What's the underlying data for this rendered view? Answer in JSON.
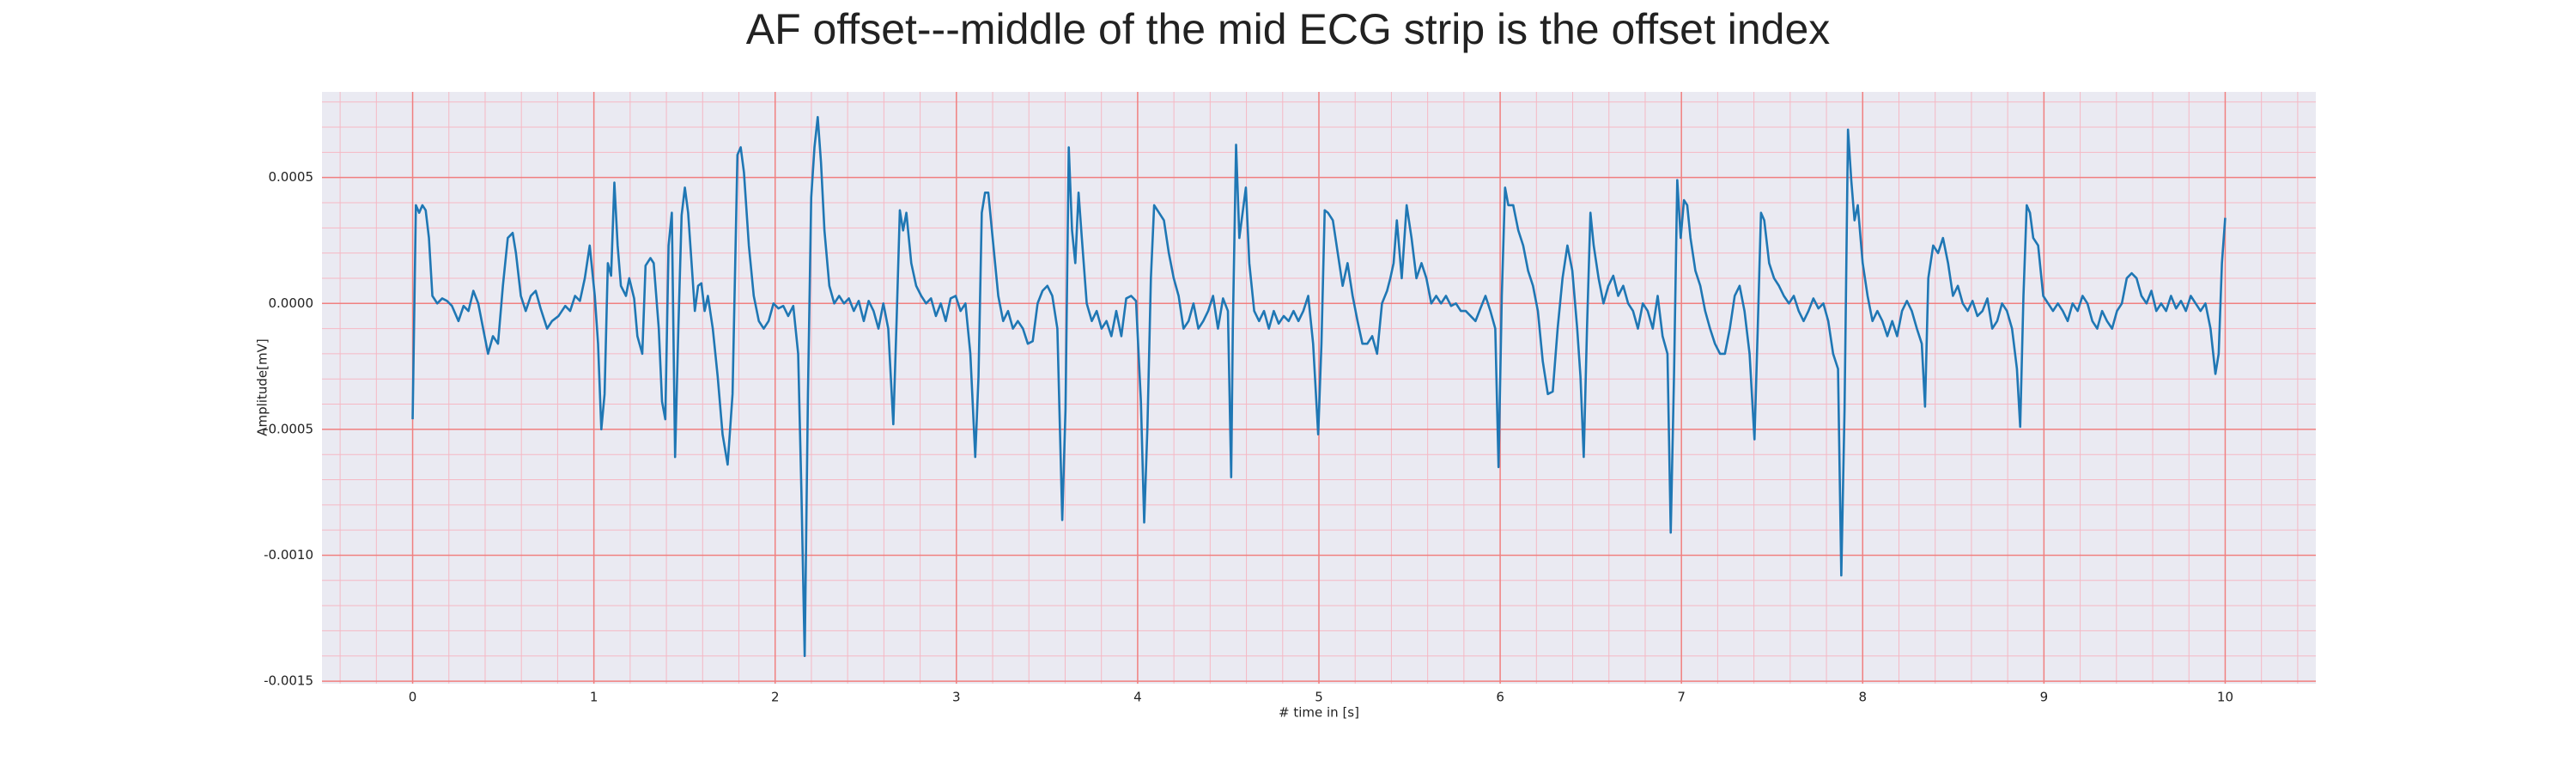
{
  "chart_data": {
    "type": "line",
    "title": "AF offset---middle of the mid ECG strip is the offset index",
    "x_label": "# time in [s]",
    "y_label": "Amplitude[mV]",
    "color": "#1f77b4",
    "grid": true,
    "minor_grid": true,
    "xlim": [
      -0.5,
      10.5
    ],
    "ylim": [
      -0.00151,
      0.00084
    ],
    "xticks": [
      0,
      1,
      2,
      3,
      4,
      5,
      6,
      7,
      8,
      9,
      10
    ],
    "yticks": [
      -0.0015,
      {
        "value": -0.001,
        "label": "-0.0010"
      },
      -0.0005,
      {
        "value": 0,
        "label": "0.0000"
      },
      0.0005
    ],
    "x": [
      0,
      0.018,
      0.036,
      0.054,
      0.072,
      0.09,
      0.109,
      0.136,
      0.163,
      0.19,
      0.217,
      0.253,
      0.281,
      0.308,
      0.335,
      0.362,
      0.389,
      0.416,
      0.443,
      0.471,
      0.498,
      0.525,
      0.552,
      0.57,
      0.597,
      0.624,
      0.652,
      0.679,
      0.706,
      0.742,
      0.769,
      0.805,
      0.842,
      0.869,
      0.896,
      0.923,
      0.95,
      0.977,
      1.005,
      1.023,
      1.041,
      1.059,
      1.077,
      1.095,
      1.113,
      1.131,
      1.149,
      1.177,
      1.195,
      1.222,
      1.24,
      1.267,
      1.285,
      1.312,
      1.33,
      1.358,
      1.376,
      1.394,
      1.412,
      1.43,
      1.448,
      1.466,
      1.484,
      1.502,
      1.52,
      1.539,
      1.557,
      1.575,
      1.593,
      1.611,
      1.629,
      1.656,
      1.683,
      1.71,
      1.738,
      1.765,
      1.792,
      1.81,
      1.828,
      1.855,
      1.882,
      1.91,
      1.937,
      1.964,
      1.991,
      2.018,
      2.045,
      2.072,
      2.1,
      2.127,
      2.145,
      2.163,
      2.181,
      2.199,
      2.217,
      2.235,
      2.253,
      2.272,
      2.299,
      2.326,
      2.353,
      2.38,
      2.407,
      2.434,
      2.461,
      2.489,
      2.516,
      2.543,
      2.57,
      2.597,
      2.624,
      2.652,
      2.67,
      2.688,
      2.706,
      2.724,
      2.751,
      2.778,
      2.806,
      2.833,
      2.86,
      2.887,
      2.914,
      2.941,
      2.968,
      2.996,
      3.023,
      3.05,
      3.077,
      3.104,
      3.122,
      3.14,
      3.158,
      3.176,
      3.204,
      3.231,
      3.258,
      3.285,
      3.312,
      3.339,
      3.367,
      3.394,
      3.421,
      3.448,
      3.475,
      3.502,
      3.529,
      3.557,
      3.584,
      3.602,
      3.62,
      3.638,
      3.656,
      3.674,
      3.692,
      3.719,
      3.747,
      3.774,
      3.801,
      3.828,
      3.855,
      3.882,
      3.91,
      3.937,
      3.964,
      3.991,
      4.018,
      4.036,
      4.054,
      4.073,
      4.091,
      4.118,
      4.145,
      4.172,
      4.199,
      4.226,
      4.253,
      4.281,
      4.308,
      4.335,
      4.362,
      4.389,
      4.416,
      4.443,
      4.471,
      4.498,
      4.516,
      4.525,
      4.543,
      4.561,
      4.579,
      4.597,
      4.616,
      4.643,
      4.67,
      4.697,
      4.724,
      4.751,
      4.778,
      4.806,
      4.833,
      4.86,
      4.887,
      4.914,
      4.941,
      4.968,
      4.996,
      5.014,
      5.032,
      5.05,
      5.077,
      5.104,
      5.131,
      5.158,
      5.186,
      5.213,
      5.24,
      5.267,
      5.294,
      5.321,
      5.348,
      5.376,
      5.394,
      5.412,
      5.43,
      5.457,
      5.484,
      5.511,
      5.538,
      5.566,
      5.593,
      5.62,
      5.647,
      5.674,
      5.701,
      5.729,
      5.756,
      5.783,
      5.81,
      5.837,
      5.864,
      5.891,
      5.919,
      5.946,
      5.973,
      5.991,
      6.009,
      6.027,
      6.045,
      6.072,
      6.1,
      6.127,
      6.154,
      6.181,
      6.208,
      6.235,
      6.263,
      6.29,
      6.317,
      6.344,
      6.371,
      6.398,
      6.425,
      6.443,
      6.461,
      6.479,
      6.498,
      6.516,
      6.543,
      6.57,
      6.597,
      6.624,
      6.651,
      6.679,
      6.706,
      6.733,
      6.76,
      6.787,
      6.814,
      6.842,
      6.869,
      6.896,
      6.923,
      6.941,
      6.959,
      6.977,
      6.996,
      7.014,
      7.032,
      7.05,
      7.077,
      7.104,
      7.131,
      7.158,
      7.185,
      7.213,
      7.24,
      7.267,
      7.294,
      7.321,
      7.348,
      7.376,
      7.403,
      7.421,
      7.439,
      7.457,
      7.484,
      7.511,
      7.538,
      7.565,
      7.593,
      7.62,
      7.647,
      7.674,
      7.701,
      7.728,
      7.756,
      7.783,
      7.81,
      7.837,
      7.864,
      7.882,
      7.9,
      7.919,
      7.937,
      7.955,
      7.973,
      8.0,
      8.027,
      8.054,
      8.081,
      8.109,
      8.136,
      8.163,
      8.19,
      8.217,
      8.244,
      8.271,
      8.299,
      8.326,
      8.344,
      8.362,
      8.389,
      8.416,
      8.443,
      8.471,
      8.498,
      8.525,
      8.552,
      8.579,
      8.606,
      8.633,
      8.661,
      8.688,
      8.715,
      8.742,
      8.769,
      8.796,
      8.824,
      8.851,
      8.869,
      8.887,
      8.905,
      8.923,
      8.941,
      8.968,
      8.996,
      9.023,
      9.05,
      9.077,
      9.104,
      9.131,
      9.158,
      9.186,
      9.213,
      9.24,
      9.267,
      9.294,
      9.321,
      9.348,
      9.376,
      9.403,
      9.43,
      9.457,
      9.484,
      9.511,
      9.538,
      9.566,
      9.593,
      9.62,
      9.647,
      9.674,
      9.701,
      9.729,
      9.756,
      9.783,
      9.81,
      9.837,
      9.864,
      9.891,
      9.919,
      9.946,
      9.964,
      9.982,
      10.0
    ],
    "values": [
      -0.00046,
      0.00039,
      0.00036,
      0.00039,
      0.00037,
      0.00026,
      3e-05,
      0,
      2e-05,
      1e-05,
      -1e-05,
      -7e-05,
      -1e-05,
      -3e-05,
      5e-05,
      0,
      -0.0001,
      -0.0002,
      -0.00013,
      -0.00016,
      7e-05,
      0.00026,
      0.00028,
      0.0002,
      3e-05,
      -3e-05,
      3e-05,
      5e-05,
      -2e-05,
      -0.0001,
      -7e-05,
      -5e-05,
      -1e-05,
      -3e-05,
      3e-05,
      1e-05,
      0.0001,
      0.00023,
      3e-05,
      -0.00016,
      -0.0005,
      -0.00036,
      0.00016,
      0.00011,
      0.00048,
      0.00023,
      7e-05,
      3e-05,
      0.0001,
      2e-05,
      -0.00013,
      -0.0002,
      0.00015,
      0.00018,
      0.00016,
      -0.0001,
      -0.00039,
      -0.00046,
      0.00023,
      0.00036,
      -0.00061,
      -0.0001,
      0.00035,
      0.00046,
      0.00036,
      0.00016,
      -3e-05,
      7e-05,
      8e-05,
      -3e-05,
      3e-05,
      -0.0001,
      -0.00029,
      -0.00052,
      -0.00064,
      -0.00036,
      0.00059,
      0.00062,
      0.00052,
      0.00023,
      3e-05,
      -7e-05,
      -0.0001,
      -7e-05,
      0,
      -2e-05,
      -1e-05,
      -5e-05,
      -1e-05,
      -0.0002,
      -0.00075,
      -0.0014,
      -0.00036,
      0.00042,
      0.00062,
      0.00074,
      0.00056,
      0.00029,
      7e-05,
      0,
      3e-05,
      0,
      2e-05,
      -3e-05,
      1e-05,
      -7e-05,
      1e-05,
      -3e-05,
      -0.0001,
      0,
      -0.0001,
      -0.00048,
      -7e-05,
      0.00037,
      0.00029,
      0.00036,
      0.00016,
      7e-05,
      3e-05,
      0,
      2e-05,
      -5e-05,
      0,
      -7e-05,
      2e-05,
      3e-05,
      -3e-05,
      0,
      -0.0002,
      -0.00061,
      -0.00029,
      0.00036,
      0.00044,
      0.00044,
      0.00023,
      3e-05,
      -7e-05,
      -3e-05,
      -0.0001,
      -7e-05,
      -0.0001,
      -0.00016,
      -0.00015,
      0,
      5e-05,
      7e-05,
      3e-05,
      -0.0001,
      -0.00086,
      -0.00042,
      0.00062,
      0.00029,
      0.00016,
      0.00044,
      0.00026,
      0,
      -7e-05,
      -3e-05,
      -0.0001,
      -7e-05,
      -0.00013,
      -3e-05,
      -0.00013,
      2e-05,
      3e-05,
      1e-05,
      -0.00039,
      -0.00087,
      -0.00049,
      0.0001,
      0.00039,
      0.00036,
      0.00033,
      0.0002,
      0.0001,
      3e-05,
      -0.0001,
      -7e-05,
      0,
      -0.0001,
      -7e-05,
      -3e-05,
      3e-05,
      -0.0001,
      2e-05,
      -3e-05,
      -0.00069,
      -0.0001,
      0.00063,
      0.00026,
      0.00036,
      0.00046,
      0.00016,
      -3e-05,
      -7e-05,
      -3e-05,
      -0.0001,
      -3e-05,
      -8e-05,
      -5e-05,
      -7e-05,
      -3e-05,
      -7e-05,
      -3e-05,
      3e-05,
      -0.00016,
      -0.00052,
      -0.00016,
      0.00037,
      0.00036,
      0.00033,
      0.0002,
      7e-05,
      0.00016,
      3e-05,
      -7e-05,
      -0.00016,
      -0.00016,
      -0.00013,
      -0.0002,
      0,
      5e-05,
      0.0001,
      0.00016,
      0.00033,
      0.0001,
      0.00039,
      0.00026,
      0.0001,
      0.00016,
      0.0001,
      0,
      3e-05,
      0,
      3e-05,
      -1e-05,
      0,
      -3e-05,
      -3e-05,
      -5e-05,
      -7e-05,
      -2e-05,
      3e-05,
      -3e-05,
      -0.0001,
      -0.00065,
      3e-05,
      0.00046,
      0.00039,
      0.00039,
      0.00029,
      0.00023,
      0.00013,
      7e-05,
      -3e-05,
      -0.00023,
      -0.00036,
      -0.00035,
      -0.0001,
      0.0001,
      0.00023,
      0.00013,
      -0.0001,
      -0.00029,
      -0.00061,
      -0.0001,
      0.00036,
      0.00023,
      0.0001,
      0,
      7e-05,
      0.00011,
      3e-05,
      7e-05,
      0,
      -3e-05,
      -0.0001,
      0,
      -3e-05,
      -0.0001,
      3e-05,
      -0.00013,
      -0.0002,
      -0.00091,
      -0.00029,
      0.00049,
      0.00026,
      0.00041,
      0.00039,
      0.00026,
      0.00013,
      7e-05,
      -3e-05,
      -0.0001,
      -0.00016,
      -0.0002,
      -0.0002,
      -0.0001,
      3e-05,
      7e-05,
      -3e-05,
      -0.0002,
      -0.00054,
      -0.0001,
      0.00036,
      0.00033,
      0.00016,
      0.0001,
      7e-05,
      3e-05,
      0,
      3e-05,
      -3e-05,
      -7e-05,
      -3e-05,
      2e-05,
      -2e-05,
      0,
      -7e-05,
      -0.0002,
      -0.00026,
      -0.00108,
      -0.00042,
      0.00069,
      0.00049,
      0.00033,
      0.00039,
      0.00016,
      3e-05,
      -7e-05,
      -3e-05,
      -7e-05,
      -0.00013,
      -7e-05,
      -0.00013,
      -3e-05,
      1e-05,
      -3e-05,
      -0.0001,
      -0.00016,
      -0.00041,
      0.0001,
      0.00023,
      0.0002,
      0.00026,
      0.00016,
      3e-05,
      7e-05,
      0,
      -3e-05,
      1e-05,
      -5e-05,
      -3e-05,
      2e-05,
      -0.0001,
      -7e-05,
      0,
      -3e-05,
      -0.0001,
      -0.00026,
      -0.00049,
      3e-05,
      0.00039,
      0.00036,
      0.00026,
      0.00023,
      3e-05,
      0,
      -3e-05,
      0,
      -3e-05,
      -7e-05,
      0,
      -3e-05,
      3e-05,
      0,
      -7e-05,
      -0.0001,
      -3e-05,
      -7e-05,
      -0.0001,
      -3e-05,
      0,
      0.0001,
      0.00012,
      0.0001,
      3e-05,
      0,
      5e-05,
      -3e-05,
      0,
      -3e-05,
      3e-05,
      -2e-05,
      1e-05,
      -3e-05,
      3e-05,
      0,
      -3e-05,
      0,
      -0.0001,
      -0.00028,
      -0.0002,
      0.00016,
      0.00034
    ]
  }
}
